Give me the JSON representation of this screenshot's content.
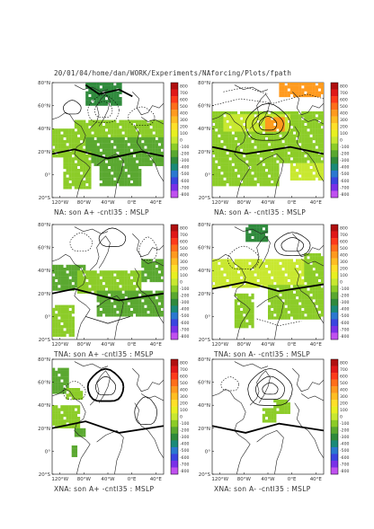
{
  "page_title": "20/01/04/home/dan/WORK/Experiments/NAforcing/Plots/fpath",
  "colorbar": {
    "labels": [
      "800",
      "700",
      "600",
      "500",
      "400",
      "300",
      "200",
      "100",
      "0",
      "-100",
      "-200",
      "-300",
      "-400",
      "-500",
      "-600",
      "-700",
      "-800"
    ],
    "colors": [
      "#b01010",
      "#e01818",
      "#ff3a1a",
      "#ff6e1a",
      "#ff9a1e",
      "#ffbe22",
      "#ffe028",
      "#e8f020",
      "#c8e830",
      "#8ccc28",
      "#5aa830",
      "#2f8a3c",
      "#1a8a78",
      "#2a78d0",
      "#3a44e0",
      "#7a30e8",
      "#c050f0"
    ]
  },
  "lat_labels": [
    "80°N",
    "60°N",
    "40°N",
    "20°N",
    "0°",
    "20°S"
  ],
  "lon_labels": [
    "120°W",
    "80°W",
    "40°W",
    "0°E",
    "40°E"
  ],
  "chart_data": [
    {
      "type": "map",
      "title": "NA: son A+ -cntl35 : MSLP",
      "variable": "MSLP",
      "anomaly_colors": [
        "#8ccc28",
        "#5aa830",
        "#2f8a3c"
      ],
      "colorbar_range": [
        -800,
        800
      ]
    },
    {
      "type": "map",
      "title": "NA: son A- -cntl35 : MSLP",
      "variable": "MSLP",
      "anomaly_colors": [
        "#c8e830",
        "#8ccc28",
        "#ff9a1e"
      ],
      "colorbar_range": [
        -800,
        800
      ]
    },
    {
      "type": "map",
      "title": "TNA: son A+ -cntl35 : MSLP",
      "variable": "MSLP",
      "anomaly_colors": [
        "#8ccc28",
        "#5aa830"
      ],
      "colorbar_range": [
        -800,
        800
      ]
    },
    {
      "type": "map",
      "title": "TNA: son A- -cntl35 : MSLP",
      "variable": "MSLP",
      "anomaly_colors": [
        "#c8e830",
        "#8ccc28",
        "#2f8a3c"
      ],
      "colorbar_range": [
        -800,
        800
      ]
    },
    {
      "type": "map",
      "title": "XNA: son A+ -cntl35 : MSLP",
      "variable": "MSLP",
      "anomaly_colors": [
        "#8ccc28",
        "#5aa830"
      ],
      "colorbar_range": [
        -800,
        800
      ]
    },
    {
      "type": "map",
      "title": "XNA: son A- -cntl35 : MSLP",
      "variable": "MSLP",
      "anomaly_colors": [
        "#8ccc28"
      ],
      "colorbar_range": [
        -800,
        800
      ]
    }
  ]
}
